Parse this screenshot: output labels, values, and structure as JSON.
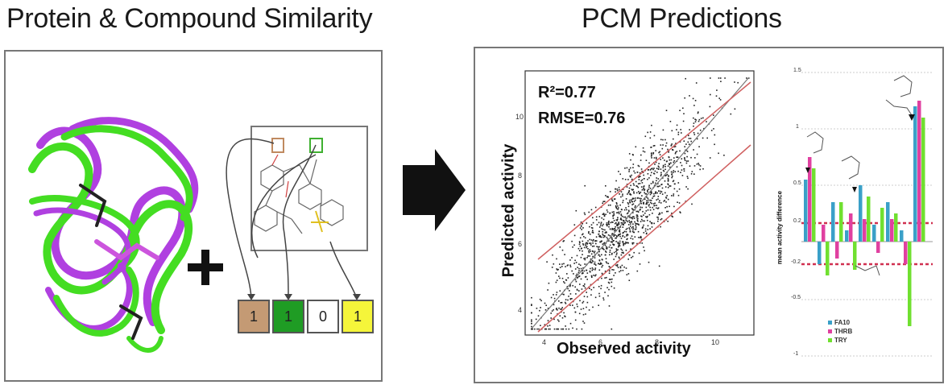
{
  "left_panel": {
    "title": "Protein & Compound Similarity",
    "fingerprint": [
      {
        "value": "1",
        "color": "#c49a74"
      },
      {
        "value": "1",
        "color": "#1f9c24"
      },
      {
        "value": "0",
        "color": "#ffffff"
      },
      {
        "value": "1",
        "color": "#f5f53a"
      }
    ]
  },
  "right_panel": {
    "title": "PCM Predictions",
    "scatter": {
      "r2": "R²=0.77",
      "rmse": "RMSE=0.76",
      "xlabel": "Observed activity",
      "ylabel": "Predicted activity",
      "xticks": [
        "4",
        "6",
        "8",
        "10"
      ],
      "yticks": [
        "4",
        "6",
        "8",
        "10"
      ]
    },
    "bars": {
      "ylabel": "mean activity difference",
      "yticks": [
        "1.5",
        "1",
        "0.5",
        "0.2",
        "-0.2",
        "-0.5",
        "-1"
      ],
      "legend": [
        {
          "label": "FA10",
          "color": "#3aa0c8"
        },
        {
          "label": "THRB",
          "color": "#e040a0"
        },
        {
          "label": "TRY",
          "color": "#70e030"
        }
      ]
    }
  },
  "chart_data": [
    {
      "type": "scatter",
      "title": "",
      "xlabel": "Observed activity",
      "ylabel": "Predicted activity",
      "xlim": [
        3.5,
        11.5
      ],
      "ylim": [
        3.5,
        11.5
      ],
      "annotations": [
        "R²=0.77",
        "RMSE=0.76"
      ]
    },
    {
      "type": "bar",
      "ylabel": "mean activity difference",
      "ylim": [
        -1,
        1.5
      ],
      "series": [
        {
          "name": "FA10",
          "values": [
            0.55,
            -0.2,
            0.35,
            0.1,
            0.5,
            0.15,
            0.35,
            0.1,
            1.2
          ]
        },
        {
          "name": "THRB",
          "values": [
            0.75,
            0.15,
            -0.15,
            0.25,
            0.2,
            -0.1,
            0.2,
            -0.2,
            1.25
          ]
        },
        {
          "name": "TRY",
          "values": [
            0.65,
            -0.3,
            0.35,
            -0.25,
            0.4,
            0.3,
            0.25,
            -0.75,
            1.1
          ]
        }
      ]
    }
  ]
}
